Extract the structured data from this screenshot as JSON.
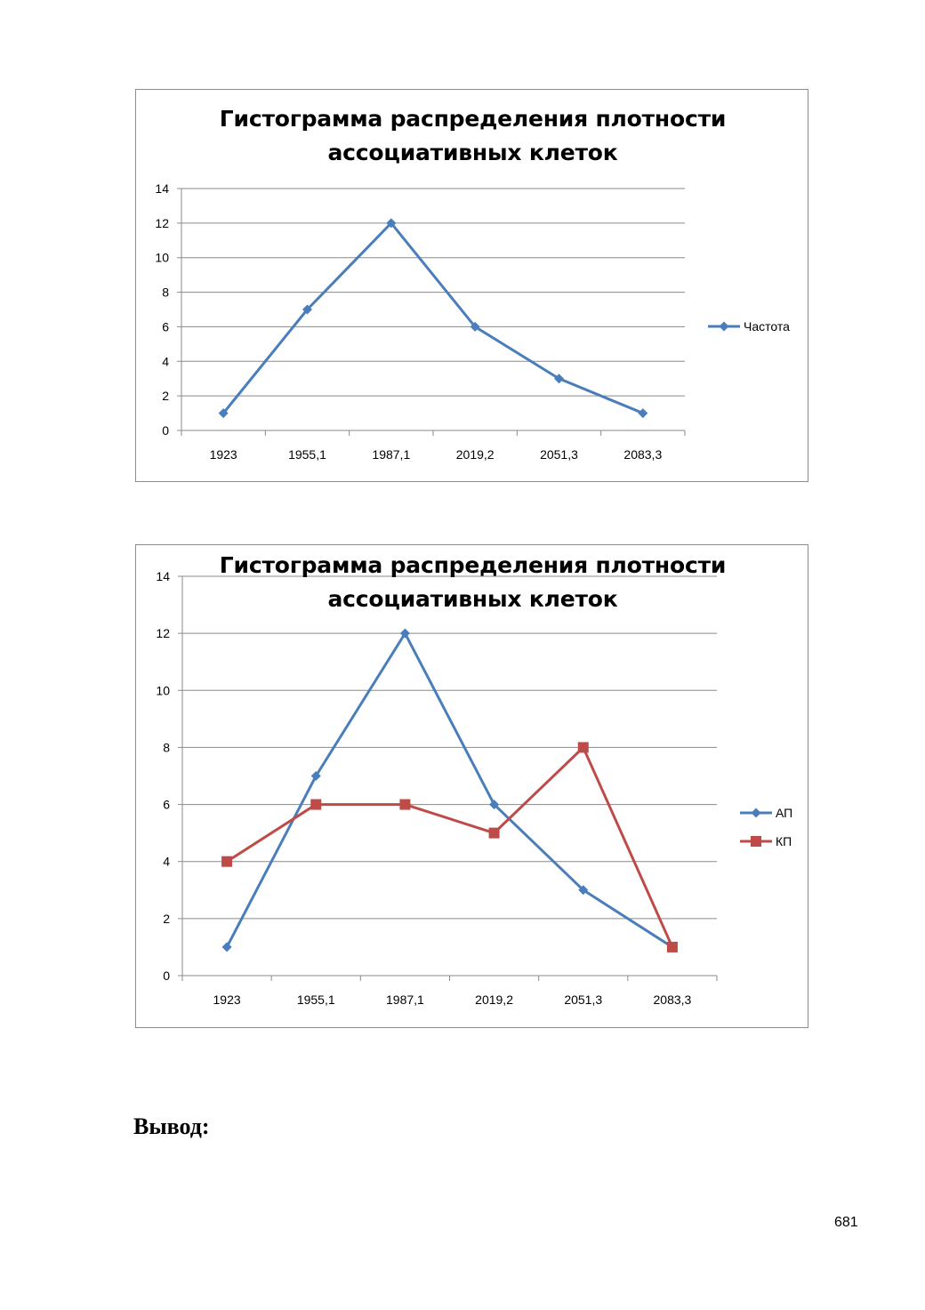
{
  "chart_data": [
    {
      "type": "line",
      "title": "Гистограмма распределения плотности ассоциативных клеток",
      "categories": [
        "1923",
        "1955,1",
        "1987,1",
        "2019,2",
        "2051,3",
        "2083,3"
      ],
      "series": [
        {
          "name": "Частота",
          "values": [
            1,
            7,
            12,
            6,
            3,
            1
          ],
          "color": "#4a7ebb",
          "marker": "diamond"
        }
      ],
      "ylim": [
        0,
        14
      ],
      "yticks": [
        0,
        2,
        4,
        6,
        8,
        10,
        12,
        14
      ],
      "grid": true,
      "legend": "right"
    },
    {
      "type": "line",
      "title": "Гистограмма распределения плотности ассоциативных клеток",
      "categories": [
        "1923",
        "1955,1",
        "1987,1",
        "2019,2",
        "2051,3",
        "2083,3"
      ],
      "series": [
        {
          "name": "АП",
          "values": [
            1,
            7,
            12,
            6,
            3,
            1
          ],
          "color": "#4a7ebb",
          "marker": "diamond"
        },
        {
          "name": "КП",
          "values": [
            4,
            6,
            6,
            5,
            8,
            1
          ],
          "color": "#be4b48",
          "marker": "square"
        }
      ],
      "ylim": [
        0,
        14
      ],
      "yticks": [
        0,
        2,
        4,
        6,
        8,
        10,
        12,
        14
      ],
      "grid": true,
      "legend": "right"
    }
  ],
  "conclusion_label": "Вывод:",
  "page_number": "681"
}
